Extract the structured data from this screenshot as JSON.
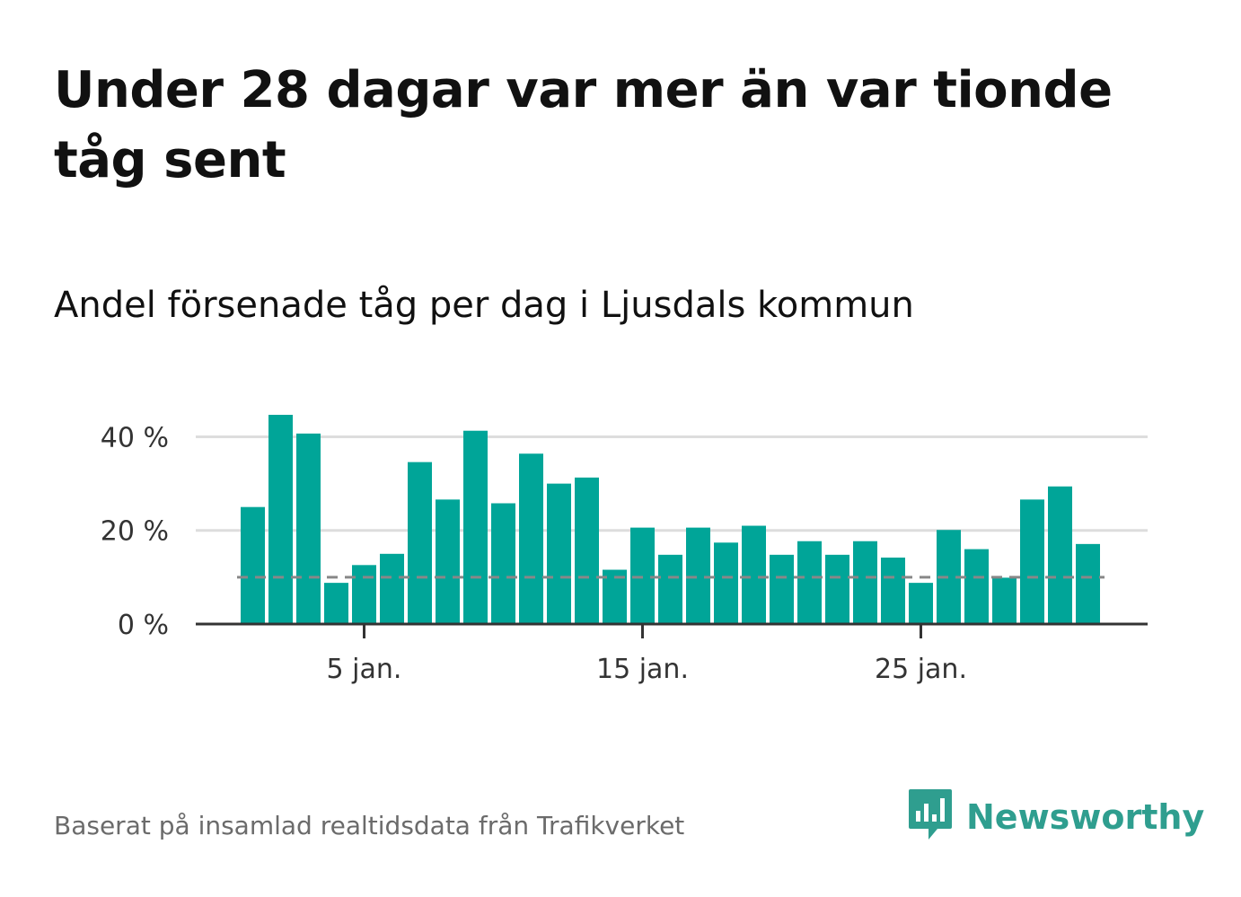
{
  "title": "Under 28 dagar var mer än var tionde tåg sent",
  "subtitle": "Andel försenade tåg per dag i Ljusdals kommun",
  "source": "Baserat på insamlad realtidsdata från Trafikverket",
  "brand": {
    "name": "Newsworthy",
    "logo_icon": "newsworthy-chart-bubble-icon"
  },
  "colors": {
    "bar": "#00a598",
    "grid": "#dddddd",
    "axis": "#333333",
    "reference_line": "#888888",
    "brand": "#2f9e8f"
  },
  "chart_data": {
    "type": "bar",
    "x_axis": "dates (January)",
    "days": [
      1,
      2,
      3,
      4,
      5,
      6,
      7,
      8,
      9,
      10,
      11,
      12,
      13,
      14,
      15,
      16,
      17,
      18,
      19,
      20,
      21,
      22,
      23,
      24,
      25,
      26,
      27,
      28,
      29,
      30,
      31
    ],
    "values": [
      25,
      44.7,
      40.7,
      8.8,
      12.6,
      15,
      34.6,
      26.6,
      41.3,
      25.8,
      36.4,
      30,
      31.3,
      11.6,
      20.6,
      14.8,
      20.6,
      17.4,
      21,
      14.8,
      17.7,
      14.8,
      17.7,
      14.2,
      8.8,
      20.1,
      16,
      9.9,
      26.6,
      29.4,
      17.1
    ],
    "ylim": [
      0,
      47
    ],
    "yticks": [
      0,
      20,
      40
    ],
    "ytick_labels": [
      "0 %",
      "20 %",
      "40 %"
    ],
    "xticks": [
      5,
      15,
      25
    ],
    "xtick_labels": [
      "5 jan.",
      "15 jan.",
      "25 jan."
    ],
    "reference_line": 10,
    "grid": true
  }
}
